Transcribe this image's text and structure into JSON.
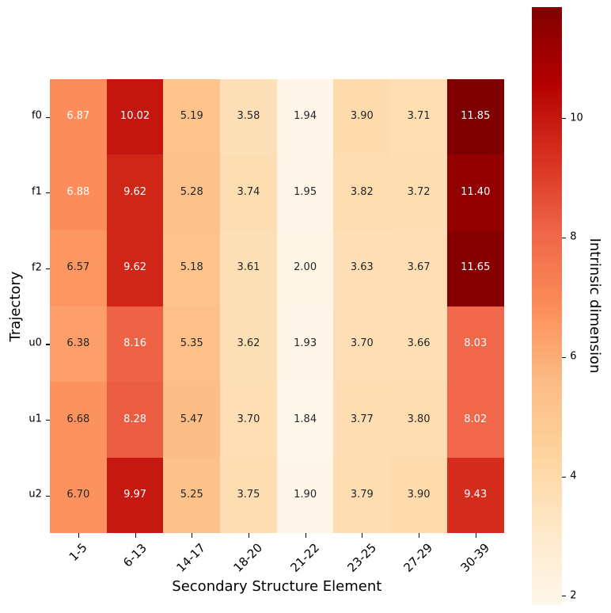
{
  "figure": {
    "background_color": "#ffffff"
  },
  "chart_data": {
    "type": "heatmap",
    "xlabel": "Secondary Structure Element",
    "ylabel": "Trajectory",
    "colorbar_label": "Intrinsic dimension",
    "x_categories": [
      "1-5",
      "6-13",
      "14-17",
      "18-20",
      "21-22",
      "23-25",
      "27-29",
      "30-39"
    ],
    "y_categories": [
      "f0",
      "f1",
      "f2",
      "u0",
      "u1",
      "u2"
    ],
    "values": [
      [
        6.87,
        10.02,
        5.19,
        3.58,
        1.94,
        3.9,
        3.71,
        11.85
      ],
      [
        6.88,
        9.62,
        5.28,
        3.74,
        1.95,
        3.82,
        3.72,
        11.4
      ],
      [
        6.57,
        9.62,
        5.18,
        3.61,
        2.0,
        3.63,
        3.67,
        11.65
      ],
      [
        6.38,
        8.16,
        5.35,
        3.62,
        1.93,
        3.7,
        3.66,
        8.03
      ],
      [
        6.68,
        8.28,
        5.47,
        3.7,
        1.84,
        3.77,
        3.8,
        8.02
      ],
      [
        6.7,
        9.97,
        5.25,
        3.75,
        1.9,
        3.79,
        3.9,
        9.43
      ]
    ],
    "value_decimals": 2,
    "colormap": "OrRd",
    "colormap_stops": [
      "#fff7ec",
      "#fee8c8",
      "#fdd49e",
      "#fdbb84",
      "#fc8d59",
      "#ef6548",
      "#d7301f",
      "#b30000",
      "#7f0000"
    ],
    "colorbar_ticks": [
      2,
      4,
      6,
      8,
      10
    ],
    "x_tick_rotation_deg": 45,
    "annotation_light_text_color": "#ffffff",
    "annotation_dark_text_color": "#262626",
    "tick_color": "#000000",
    "label_color": "#000000",
    "grid": false,
    "legend": false
  }
}
